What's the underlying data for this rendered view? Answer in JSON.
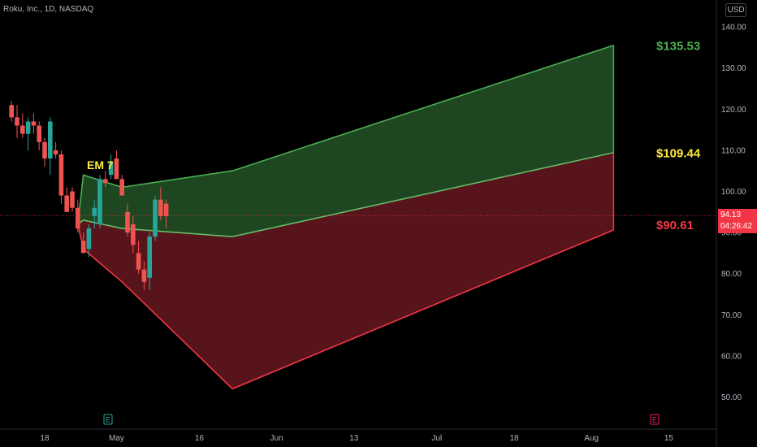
{
  "header": {
    "symbol_title": "Roku, Inc., 1D, NASDAQ",
    "currency_label": "USD"
  },
  "current_price": {
    "value": "94.13",
    "countdown": "04:26:42"
  },
  "colors": {
    "background": "#000000",
    "up_candle": "#26a69a",
    "down_candle": "#ef5350",
    "upper_band_fill": "#1f4a23",
    "lower_band_fill": "#5c161c",
    "upper_line": "#4caf50",
    "lower_line": "#f23645",
    "mid_line": "#66bb6a",
    "label_upper": "#4caf50",
    "label_mid": "#ffeb3b",
    "label_lower": "#f23645"
  },
  "chart_data": {
    "type": "candlestick",
    "y_axis": {
      "ticks": [
        140,
        130,
        120,
        110,
        100,
        90,
        80,
        70,
        60,
        50
      ],
      "tick_labels": [
        "140.00",
        "130.00",
        "120.00",
        "110.00",
        "100.00",
        "90.00",
        "80.00",
        "70.00",
        "60.00",
        "50.00"
      ],
      "range": [
        45,
        143
      ]
    },
    "x_axis": {
      "tick_labels": [
        "18",
        "May",
        "16",
        "Jun",
        "13",
        "Jul",
        "18",
        "Aug",
        "15"
      ],
      "tick_days": [
        1,
        14,
        29,
        43,
        57,
        72,
        86,
        100,
        114
      ]
    },
    "annotation_em": "EM 7",
    "band_labels": {
      "upper": "$135.53",
      "mid": "$109.44",
      "lower": "$90.61"
    },
    "candles": [
      {
        "d": -5,
        "o": 121,
        "h": 122,
        "l": 117,
        "c": 118
      },
      {
        "d": -4,
        "o": 118,
        "h": 121,
        "l": 113,
        "c": 116
      },
      {
        "d": -3,
        "o": 116,
        "h": 119,
        "l": 113,
        "c": 114
      },
      {
        "d": -2,
        "o": 114,
        "h": 118,
        "l": 110,
        "c": 117
      },
      {
        "d": -1,
        "o": 117,
        "h": 119,
        "l": 114,
        "c": 116
      },
      {
        "d": 0,
        "o": 116,
        "h": 117,
        "l": 110,
        "c": 112
      },
      {
        "d": 1,
        "o": 112,
        "h": 113,
        "l": 106,
        "c": 108
      },
      {
        "d": 2,
        "o": 108,
        "h": 118,
        "l": 104,
        "c": 117
      },
      {
        "d": 3,
        "o": 110,
        "h": 112,
        "l": 108,
        "c": 109
      },
      {
        "d": 4,
        "o": 109,
        "h": 110,
        "l": 97,
        "c": 99
      },
      {
        "d": 5,
        "o": 99,
        "h": 101,
        "l": 95,
        "c": 95
      },
      {
        "d": 6,
        "o": 100,
        "h": 101,
        "l": 95,
        "c": 96
      },
      {
        "d": 7,
        "o": 96,
        "h": 98,
        "l": 90,
        "c": 91
      },
      {
        "d": 8,
        "o": 88,
        "h": 90,
        "l": 85,
        "c": 85
      },
      {
        "d": 9,
        "o": 86,
        "h": 92,
        "l": 84,
        "c": 91
      },
      {
        "d": 10,
        "o": 94,
        "h": 98,
        "l": 91,
        "c": 96
      },
      {
        "d": 11,
        "o": 92,
        "h": 104,
        "l": 91,
        "c": 103
      },
      {
        "d": 12,
        "o": 103,
        "h": 105,
        "l": 101,
        "c": 102
      },
      {
        "d": 13,
        "o": 104,
        "h": 109,
        "l": 103,
        "c": 107
      },
      {
        "d": 14,
        "o": 108,
        "h": 110,
        "l": 103,
        "c": 103
      },
      {
        "d": 15,
        "o": 103,
        "h": 104,
        "l": 99,
        "c": 99
      },
      {
        "d": 16,
        "o": 95,
        "h": 97,
        "l": 89,
        "c": 90
      },
      {
        "d": 17,
        "o": 92,
        "h": 94,
        "l": 85,
        "c": 87
      },
      {
        "d": 18,
        "o": 85,
        "h": 88,
        "l": 80,
        "c": 81
      },
      {
        "d": 19,
        "o": 81,
        "h": 83,
        "l": 76,
        "c": 78
      },
      {
        "d": 20,
        "o": 79,
        "h": 90,
        "l": 76,
        "c": 89
      },
      {
        "d": 21,
        "o": 89,
        "h": 99,
        "l": 88,
        "c": 98
      },
      {
        "d": 22,
        "o": 98,
        "h": 101,
        "l": 93,
        "c": 94
      },
      {
        "d": 23,
        "o": 97,
        "h": 98,
        "l": 91,
        "c": 94
      }
    ],
    "upper_band": [
      [
        7,
        92
      ],
      [
        8,
        104
      ],
      [
        15,
        101
      ],
      [
        35,
        105
      ],
      [
        104,
        135.53
      ]
    ],
    "mid_line": [
      [
        7,
        92
      ],
      [
        8,
        93
      ],
      [
        15,
        91
      ],
      [
        35,
        89
      ],
      [
        104,
        109.44
      ]
    ],
    "lower_band": [
      [
        7,
        92
      ],
      [
        8,
        86
      ],
      [
        15,
        78
      ],
      [
        35,
        52
      ],
      [
        104,
        90.61
      ]
    ],
    "current_price_line": 94.13
  }
}
